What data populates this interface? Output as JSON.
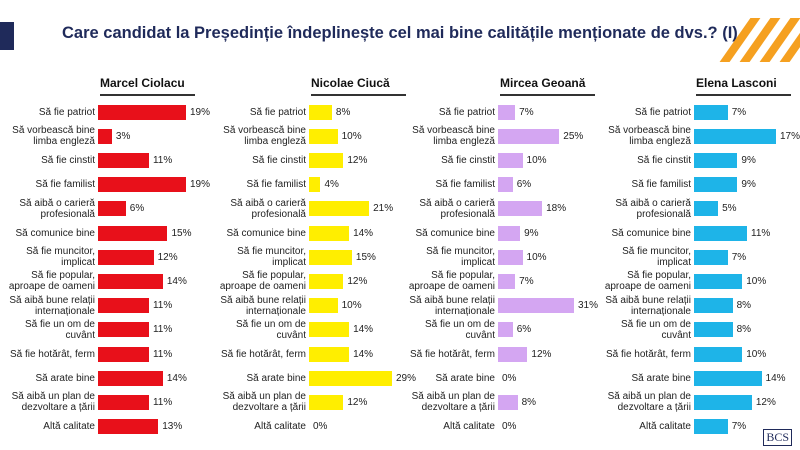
{
  "title": "Care candidat la Președinție îndeplinește cel mai bine calitățile menționate de dvs.? (I)",
  "logo": "BCS",
  "chart_data": [
    {
      "type": "bar",
      "title": "Marcel Ciolacu",
      "color": "#e8101a",
      "categories": [
        "Să fie patriot",
        "Să vorbească bine limba engleză",
        "Să fie cinstit",
        "Să fie familist",
        "Să aibă o carieră profesională",
        "Să comunice bine",
        "Să fie muncitor, implicat",
        "Să fie popular, aproape de oameni",
        "Să aibă bune relații internaționale",
        "Să fie un om de cuvânt",
        "Să fie hotărât, ferm",
        "Să arate bine",
        "Să aibă un plan de dezvoltare a țării",
        "Altă calitate"
      ],
      "values": [
        19,
        3,
        11,
        19,
        6,
        15,
        12,
        14,
        11,
        11,
        11,
        14,
        11,
        13
      ],
      "value_labels": [
        "19%",
        "3%",
        "11%",
        "19%",
        "6%",
        "15%",
        "12%",
        "14%",
        "11%",
        "11%",
        "11%",
        "14%",
        "11%",
        "13%"
      ]
    },
    {
      "type": "bar",
      "title": "Nicolae Ciucă",
      "color": "#ffee00",
      "categories": [
        "Să fie patriot",
        "Să vorbească bine limba engleză",
        "Să fie cinstit",
        "Să fie familist",
        "Să aibă o carieră profesională",
        "Să comunice bine",
        "Să fie muncitor, implicat",
        "Să fie popular, aproape de oameni",
        "Să aibă bune relații internaționale",
        "Să fie un om de cuvânt",
        "Să fie hotărât, ferm",
        "Să arate bine",
        "Să aibă un plan de dezvoltare a țării",
        "Altă calitate"
      ],
      "values": [
        8,
        10,
        12,
        4,
        21,
        14,
        15,
        12,
        10,
        14,
        14,
        29,
        12,
        0
      ],
      "value_labels": [
        "8%",
        "10%",
        "12%",
        "4%",
        "21%",
        "14%",
        "15%",
        "12%",
        "10%",
        "14%",
        "14%",
        "29%",
        "12%",
        "0%"
      ]
    },
    {
      "type": "bar",
      "title": "Mircea Geoană",
      "color": "#d4a6f2",
      "categories": [
        "Să fie patriot",
        "Să vorbească bine limba engleză",
        "Să fie cinstit",
        "Să fie familist",
        "Să aibă o carieră profesională",
        "Să comunice bine",
        "Să fie muncitor, implicat",
        "Să fie popular, aproape de oameni",
        "Să aibă bune relații internaționale",
        "Să fie un om de cuvânt",
        "Să fie hotărât, ferm",
        "Să arate bine",
        "Să aibă un plan de dezvoltare a țării",
        "Altă calitate"
      ],
      "values": [
        7,
        25,
        10,
        6,
        18,
        9,
        10,
        7,
        31,
        6,
        12,
        0,
        8,
        0
      ],
      "value_labels": [
        "7%",
        "25%",
        "10%",
        "6%",
        "18%",
        "9%",
        "10%",
        "7%",
        "31%",
        "6%",
        "12%",
        "0%",
        "8%",
        "0%"
      ]
    },
    {
      "type": "bar",
      "title": "Elena Lasconi",
      "color": "#1eb4e8",
      "categories": [
        "Să fie patriot",
        "Să vorbească bine limba engleză",
        "Să fie cinstit",
        "Să fie familist",
        "Să aibă o carieră profesională",
        "Să comunice bine",
        "Să fie muncitor, implicat",
        "Să fie popular, aproape de oameni",
        "Să aibă bune relații internaționale",
        "Să fie un om de cuvânt",
        "Să fie hotărât, ferm",
        "Să arate bine",
        "Să aibă un plan de dezvoltare a țării",
        "Altă calitate"
      ],
      "values": [
        7,
        17,
        9,
        9,
        5,
        11,
        7,
        10,
        8,
        8,
        10,
        14,
        12,
        7
      ],
      "value_labels": [
        "7%",
        "17%",
        "9%",
        "9%",
        "5%",
        "11%",
        "7%",
        "10%",
        "8%",
        "8%",
        "10%",
        "14%",
        "12%",
        "7%"
      ]
    }
  ]
}
